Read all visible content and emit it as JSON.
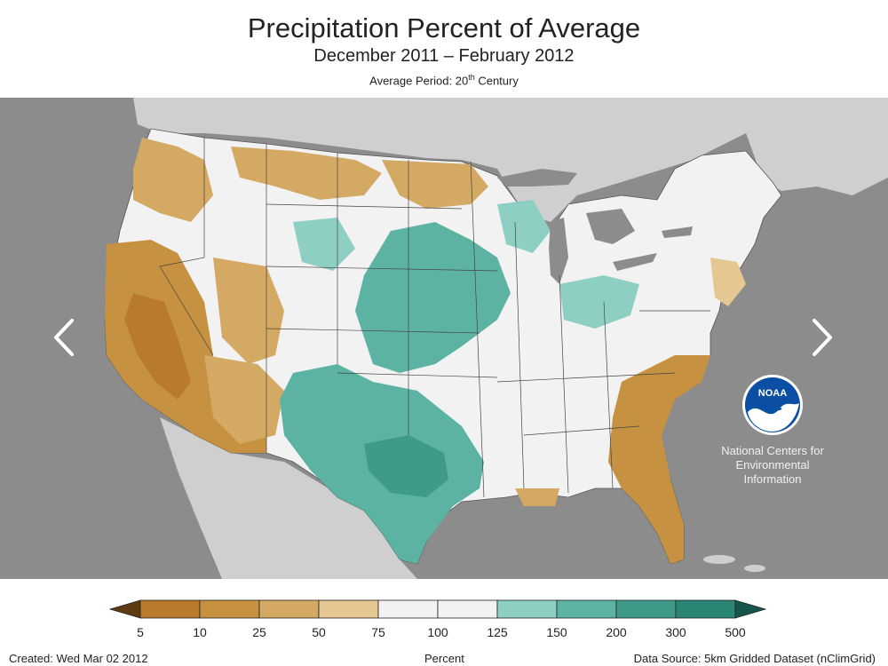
{
  "header": {
    "title": "Precipitation Percent of Average",
    "subtitle": "December 2011 – February 2012",
    "period_prefix": "Average Period: 20",
    "period_sup": "th",
    "period_suffix": " Century"
  },
  "nav": {
    "prev_icon": "chevron-left-icon",
    "next_icon": "chevron-right-icon"
  },
  "logo": {
    "icon": "noaa-logo",
    "wordmark": "NOAA",
    "lines": [
      "National Centers for",
      "Environmental",
      "Information"
    ]
  },
  "legend": {
    "ticks": [
      "5",
      "10",
      "25",
      "50",
      "75",
      "100",
      "125",
      "150",
      "200",
      "300",
      "500"
    ],
    "colors": [
      "#5c3a12",
      "#b97a2d",
      "#c69140",
      "#d4a963",
      "#e5c792",
      "#f2f2f2",
      "#f2f2f2",
      "#8ecfc3",
      "#5cb3a4",
      "#3f9a89",
      "#2a8574",
      "#15564c"
    ]
  },
  "footer": {
    "created": "Created: Wed Mar 02 2012",
    "units": "Percent",
    "source": "Data Source: 5km Gridded Dataset (nClimGrid)"
  },
  "colors": {
    "ocean": "#8c8c8c",
    "land_outside": "#cfcfcf",
    "near_normal": "#f2f2f2",
    "dry": "#c69140",
    "wet": "#5cb3a4"
  }
}
